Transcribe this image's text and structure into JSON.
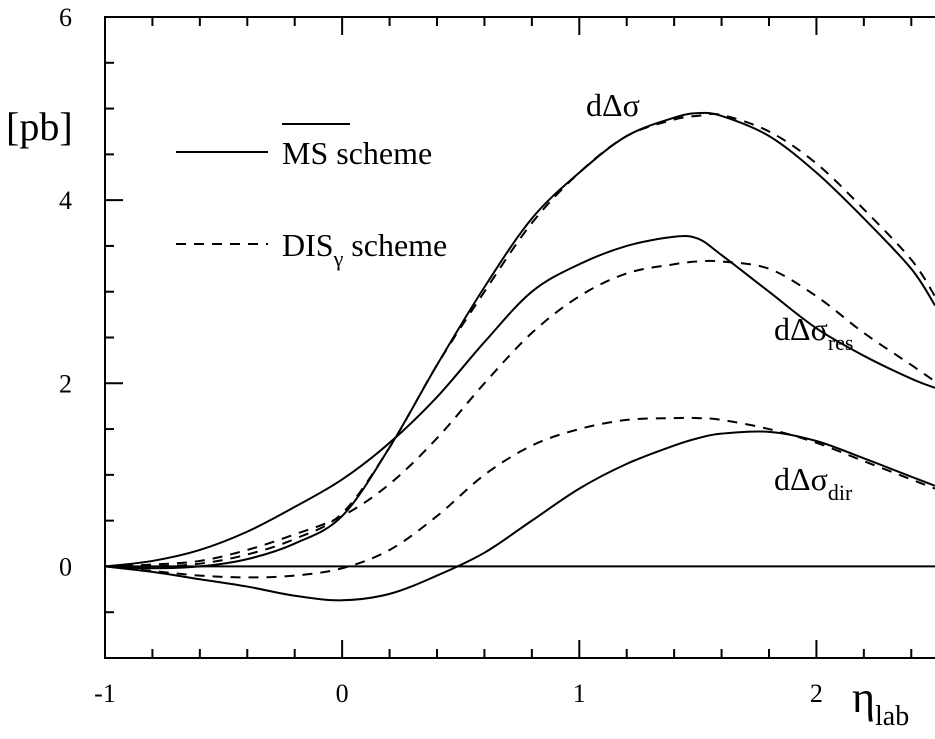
{
  "chart_data": {
    "type": "line",
    "title": "",
    "ylabel": "[pb]",
    "xlabel": "η",
    "xlabel_sub": "lab",
    "xlim": [
      -1,
      2.5
    ],
    "ylim": [
      -1,
      6
    ],
    "x_ticks": [
      -1,
      0,
      1,
      2
    ],
    "y_ticks": [
      0,
      2,
      4,
      6
    ],
    "grid": false,
    "legend": {
      "placement": "top-left",
      "entries": [
        {
          "style": "solid",
          "label_main": "MS",
          "label_rest": " scheme",
          "overline": true
        },
        {
          "style": "dashed",
          "label_main": "DIS",
          "label_sub": "γ",
          "label_rest": " scheme"
        }
      ]
    },
    "annotations": [
      {
        "main": "dΔσ",
        "sub": ""
      },
      {
        "main": "dΔσ",
        "sub": "res"
      },
      {
        "main": "dΔσ",
        "sub": "dir"
      }
    ],
    "x": [
      -1.0,
      -0.8,
      -0.6,
      -0.4,
      -0.2,
      0.0,
      0.2,
      0.4,
      0.6,
      0.8,
      1.0,
      1.2,
      1.4,
      1.5,
      1.6,
      1.8,
      2.0,
      2.2,
      2.4,
      2.5
    ],
    "series": [
      {
        "curve": "total",
        "scheme": "MS",
        "style": "solid",
        "values": [
          0.0,
          -0.02,
          0.0,
          0.08,
          0.25,
          0.55,
          1.3,
          2.2,
          3.05,
          3.8,
          4.3,
          4.7,
          4.9,
          4.95,
          4.92,
          4.7,
          4.3,
          3.8,
          3.25,
          2.85
        ]
      },
      {
        "curve": "total",
        "scheme": "DIS",
        "style": "dashed",
        "values": [
          0.0,
          0.0,
          0.03,
          0.13,
          0.3,
          0.58,
          1.3,
          2.2,
          3.0,
          3.75,
          4.3,
          4.7,
          4.88,
          4.92,
          4.93,
          4.75,
          4.4,
          3.9,
          3.35,
          2.95
        ]
      },
      {
        "curve": "res",
        "scheme": "MS",
        "style": "solid",
        "values": [
          0.0,
          0.06,
          0.18,
          0.38,
          0.65,
          0.95,
          1.35,
          1.85,
          2.45,
          3.0,
          3.3,
          3.5,
          3.6,
          3.58,
          3.4,
          3.0,
          2.6,
          2.3,
          2.05,
          1.95
        ]
      },
      {
        "curve": "res",
        "scheme": "DIS",
        "style": "dashed",
        "values": [
          0.0,
          0.02,
          0.06,
          0.18,
          0.35,
          0.55,
          0.9,
          1.4,
          2.0,
          2.55,
          2.95,
          3.2,
          3.3,
          3.33,
          3.33,
          3.25,
          2.95,
          2.55,
          2.2,
          2.02
        ]
      },
      {
        "curve": "dir",
        "scheme": "MS",
        "style": "solid",
        "values": [
          0.0,
          -0.06,
          -0.14,
          -0.22,
          -0.32,
          -0.37,
          -0.3,
          -0.1,
          0.15,
          0.5,
          0.85,
          1.12,
          1.32,
          1.4,
          1.45,
          1.47,
          1.37,
          1.18,
          0.98,
          0.88
        ]
      },
      {
        "curve": "dir",
        "scheme": "DIS",
        "style": "dashed",
        "values": [
          0.0,
          -0.05,
          -0.1,
          -0.12,
          -0.1,
          -0.02,
          0.18,
          0.55,
          1.0,
          1.32,
          1.5,
          1.6,
          1.62,
          1.62,
          1.6,
          1.5,
          1.35,
          1.15,
          0.95,
          0.85
        ]
      }
    ]
  }
}
